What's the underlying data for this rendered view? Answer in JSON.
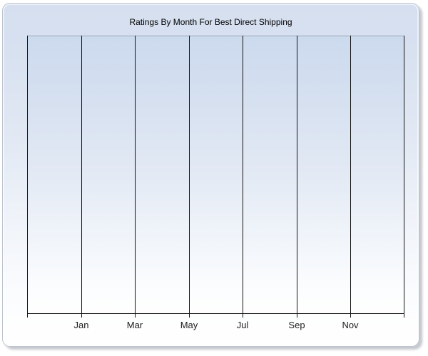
{
  "panel": {
    "title": "Ratings By Month For Best Direct Shipping"
  },
  "chart_data": {
    "type": "bar",
    "title": "Ratings By Month For Best Direct Shipping",
    "categories": [
      "Jan",
      "Mar",
      "May",
      "Jul",
      "Sep",
      "Nov"
    ],
    "series": [],
    "xlabel": "",
    "ylabel": "",
    "plot_empty": true,
    "y_axis_tick_labels_visible": false,
    "gridlines": "vertical-only",
    "legend": "none"
  },
  "colors": {
    "panel_border": "#bdc4cf",
    "panel_gradient_top": "#d5dfef",
    "panel_gradient_bottom": "#ffffff",
    "plot_gradient_top": "#ccdaee",
    "plot_gradient_bottom": "#fefefe",
    "plot_top_border": "#9aa5b4",
    "gridline": "#141414",
    "axis_line": "#000000",
    "title_text": "#000000",
    "label_text": "#1c1c1c"
  }
}
